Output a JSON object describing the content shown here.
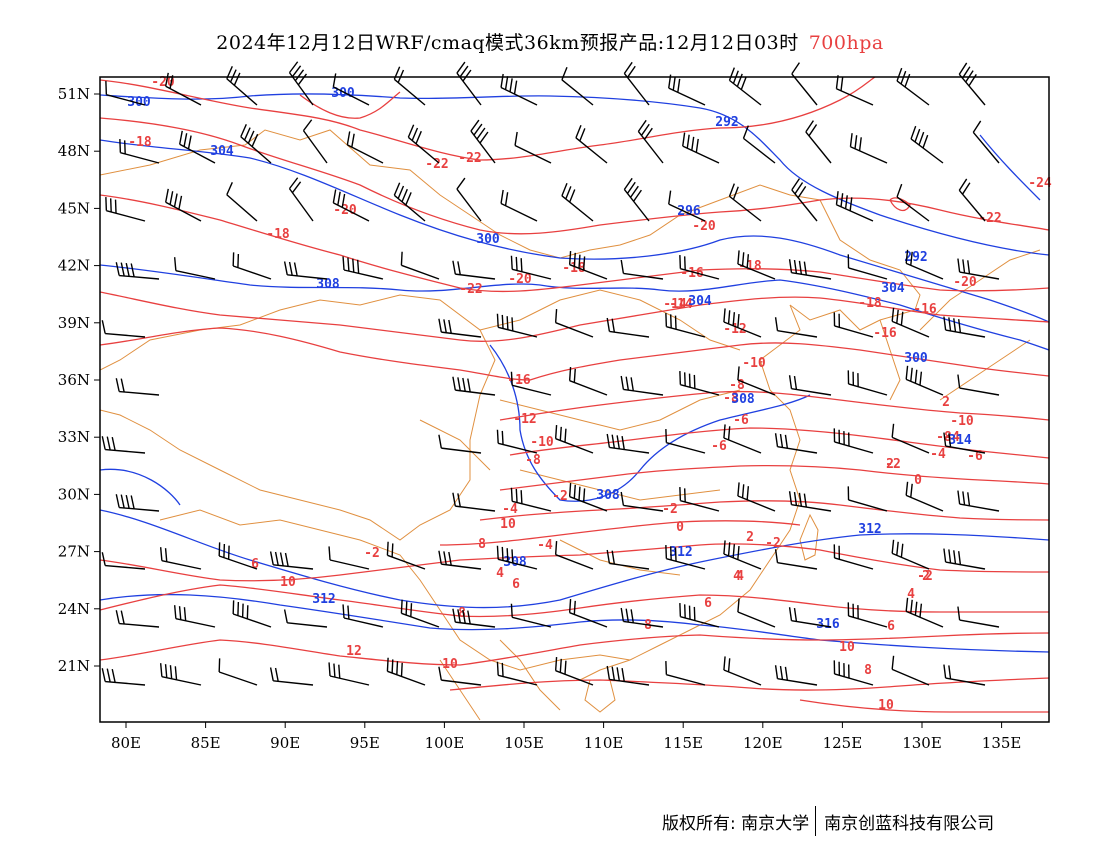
{
  "title": {
    "main": "2024年12月12日WRF/cmaq模式36km预报产品:12月12日03时",
    "level": "700hpa",
    "level_color": "#e84040"
  },
  "colors": {
    "temperature": "#e84040",
    "height": "#2040e0",
    "coast_border": "#e09040",
    "wind": "#000000"
  },
  "axes": {
    "x_ticks": [
      "80E",
      "85E",
      "90E",
      "95E",
      "100E",
      "105E",
      "110E",
      "115E",
      "120E",
      "125E",
      "130E",
      "135E"
    ],
    "y_ticks": [
      "21N",
      "24N",
      "27N",
      "30N",
      "33N",
      "36N",
      "39N",
      "42N",
      "45N",
      "48N",
      "51N"
    ]
  },
  "contour_labels": {
    "temperature": [
      "-20",
      "-18",
      "-20",
      "-22",
      "-22",
      "-18",
      "-20",
      "-18",
      "-22",
      "-20",
      "-18",
      "-16",
      "-18",
      "-14",
      "-16",
      "-16",
      "-20",
      "-22",
      "-24",
      "-12",
      "-16",
      "-10",
      "-12",
      "-10",
      "-8",
      "-8",
      "-6",
      "-10",
      "-8",
      "-6",
      "-4",
      "-4",
      "-2",
      "-2",
      "-4",
      "-2",
      "0",
      "2",
      "-2",
      "-2",
      "0",
      "2",
      "4",
      "4",
      "6",
      "6",
      "6",
      "8",
      "10",
      "8",
      "10",
      "12",
      "8",
      "10",
      "10",
      "2",
      "4",
      "6",
      "8",
      "10",
      "-6",
      "-4",
      "-8",
      "-14",
      "2",
      "4",
      "-2"
    ],
    "height": [
      "300",
      "300",
      "304",
      "292",
      "296",
      "300",
      "308",
      "304",
      "292",
      "304",
      "300",
      "308",
      "308",
      "308",
      "312",
      "312",
      "312",
      "316",
      "314"
    ]
  },
  "footer": {
    "copyright": "版权所有: 南京大学",
    "company": "南京创蓝科技有限公司"
  }
}
